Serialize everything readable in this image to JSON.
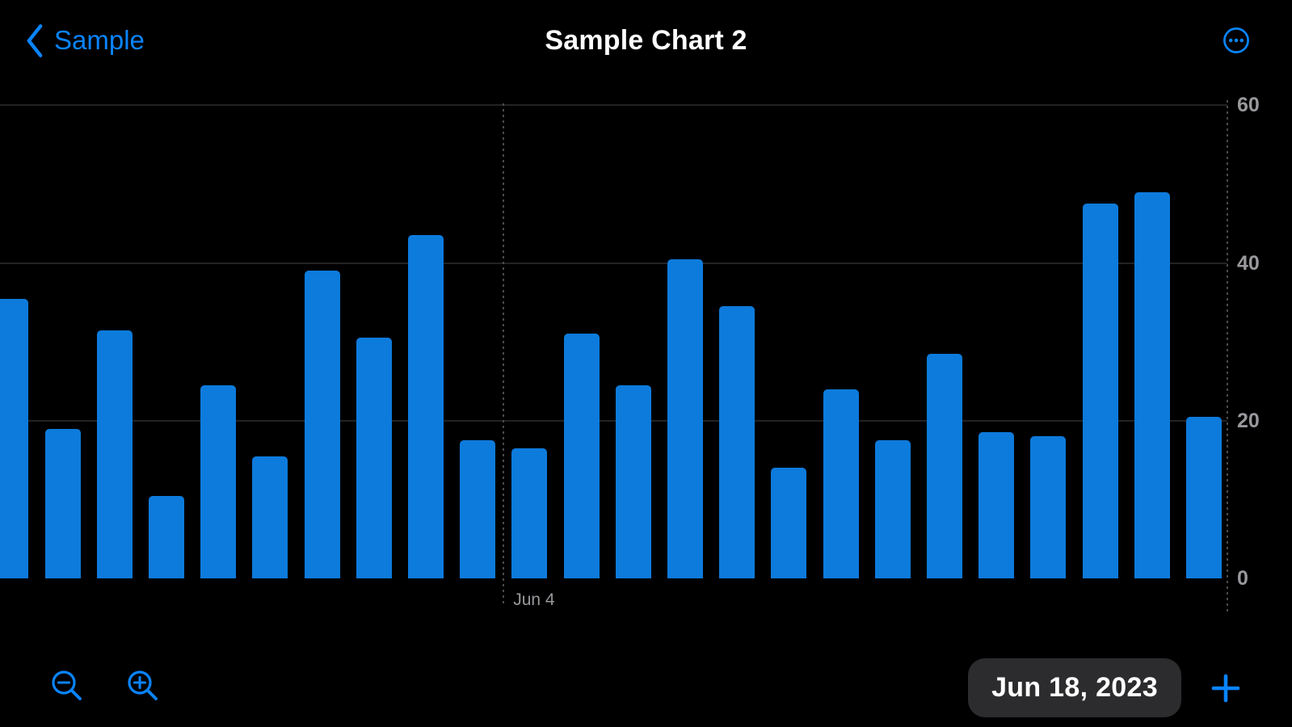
{
  "nav": {
    "back_label": "Sample",
    "title": "Sample Chart 2"
  },
  "colors": {
    "accent": "#0A84FF",
    "bar_fill": "#0D7BDC",
    "background": "#000000",
    "gridline": "#222225",
    "dotted_line": "#4A4A4E",
    "axis_label": "#98989D",
    "pill_background": "#2C2C2E",
    "pill_text": "#FFFFFF"
  },
  "icons": {
    "back": "chevron-left-icon",
    "menu": "ellipsis-circle-icon",
    "zoom_out": "magnifier-minus-icon",
    "zoom_in": "magnifier-plus-icon",
    "add": "plus-icon"
  },
  "chart_data": {
    "type": "bar",
    "title": "Sample Chart 2",
    "xlabel": "",
    "ylabel": "",
    "ylim": [
      0,
      60
    ],
    "y_ticks": [
      0,
      20,
      40,
      60
    ],
    "y_axis_side": "right",
    "grid_horizontal_at": [
      20,
      40,
      60
    ],
    "x_ticks": [
      {
        "label": "Jun 4",
        "position_index": 9.5
      }
    ],
    "bar_count": 24,
    "first_bar_clipped_left": true,
    "values": [
      35.5,
      19,
      31.5,
      10.5,
      24.5,
      15.5,
      39,
      30.5,
      43.5,
      17.5,
      16.5,
      31,
      24.5,
      40.5,
      34.5,
      14,
      24,
      17.5,
      28.5,
      18.5,
      18,
      47.5,
      49,
      20.5
    ]
  },
  "footer": {
    "date_label": "Jun 18, 2023"
  }
}
